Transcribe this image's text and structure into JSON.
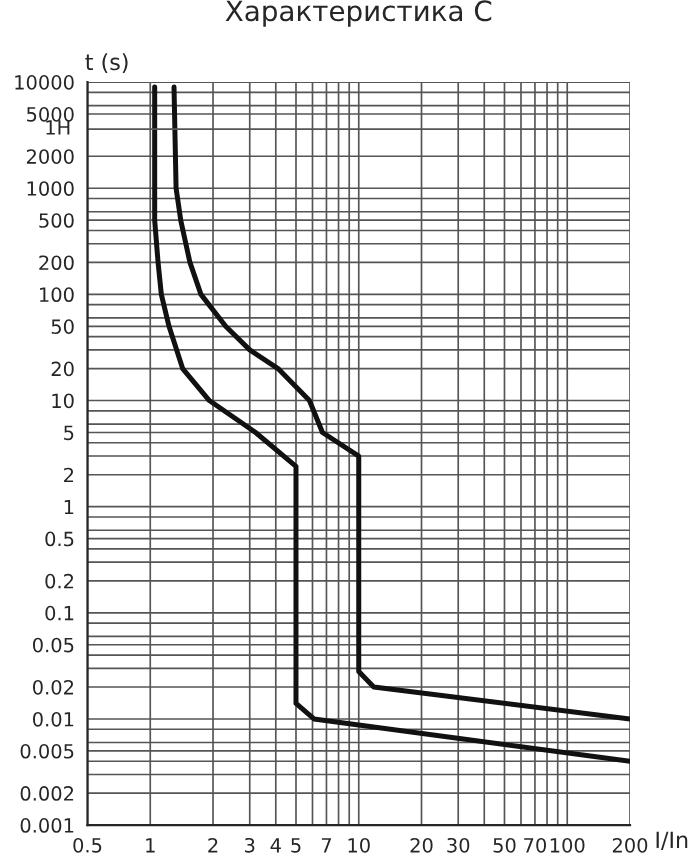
{
  "chart_data": {
    "type": "line",
    "title": "Характеристика C",
    "xlabel": "I/In",
    "ylabel": "t (s)",
    "log": "xy",
    "grid": true,
    "marker": "none",
    "line_style": "solid",
    "xlim": [
      0.5,
      200
    ],
    "ylim": [
      0.001,
      10000
    ],
    "xticks": [
      0.5,
      1,
      2,
      3,
      4,
      5,
      {
        "value": 6,
        "label": null
      },
      7,
      {
        "value": 8,
        "label": null
      },
      {
        "value": 9,
        "label": null
      },
      10,
      20,
      30,
      {
        "value": 40,
        "label": null
      },
      50,
      {
        "value": 60,
        "label": null
      },
      70,
      {
        "value": 80,
        "label": null
      },
      {
        "value": 90,
        "label": null
      },
      100,
      200
    ],
    "yticks": [
      0.001,
      0.002,
      {
        "value": 0.003,
        "label": null
      },
      {
        "value": 0.004,
        "label": null
      },
      0.005,
      {
        "value": 0.006,
        "label": null
      },
      {
        "value": 0.008,
        "label": null
      },
      0.01,
      0.02,
      {
        "value": 0.03,
        "label": null
      },
      {
        "value": 0.04,
        "label": null
      },
      0.05,
      {
        "value": 0.06,
        "label": null
      },
      {
        "value": 0.08,
        "label": null
      },
      0.1,
      0.2,
      {
        "value": 0.3,
        "label": null
      },
      {
        "value": 0.4,
        "label": null
      },
      0.5,
      {
        "value": 0.6,
        "label": null
      },
      {
        "value": 0.8,
        "label": null
      },
      1,
      2,
      {
        "value": 3,
        "label": null
      },
      {
        "value": 4,
        "label": null
      },
      5,
      {
        "value": 6,
        "label": null
      },
      {
        "value": 8,
        "label": null
      },
      10,
      20,
      {
        "value": 30,
        "label": null
      },
      {
        "value": 40,
        "label": null
      },
      50,
      {
        "value": 60,
        "label": null
      },
      {
        "value": 80,
        "label": null
      },
      100,
      200,
      {
        "value": 300,
        "label": null
      },
      {
        "value": 400,
        "label": null
      },
      500,
      {
        "value": 600,
        "label": null
      },
      {
        "value": 800,
        "label": null
      },
      1000,
      2000,
      5000,
      {
        "value": 6000,
        "label": null
      },
      {
        "value": 8000,
        "label": null
      },
      10000
    ],
    "ref_lines": [
      {
        "axis": "y",
        "value": 3600,
        "label": "1H",
        "color": "#555555"
      }
    ],
    "series": [
      {
        "color": "#111111",
        "x": [
          1.05,
          1.05,
          1.09,
          1.13,
          1.23,
          1.43,
          1.92,
          3.2,
          5,
          5,
          6.1,
          200
        ],
        "values": [
          9000,
          500,
          200,
          100,
          50,
          20,
          10,
          5,
          2.4,
          0.014,
          0.01,
          0.004
        ]
      },
      {
        "color": "#111111",
        "x": [
          1.3,
          1.33,
          1.4,
          1.55,
          1.75,
          2.3,
          3,
          4.1,
          5.8,
          6.7,
          10,
          10,
          11.8,
          200
        ],
        "values": [
          9000,
          1000,
          500,
          200,
          100,
          50,
          30,
          20,
          10,
          5,
          3,
          0.028,
          0.02,
          0.01
        ]
      }
    ]
  }
}
